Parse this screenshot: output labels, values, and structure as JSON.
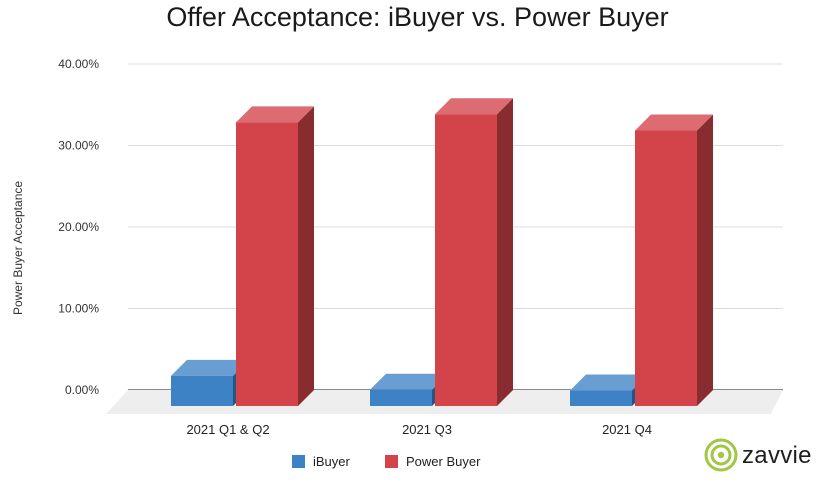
{
  "chart_data": {
    "type": "bar",
    "title": "Offer Acceptance: iBuyer vs. Power Buyer",
    "ylabel": "Power Buyer Acceptance",
    "xlabel": "",
    "categories": [
      "2021 Q1 & Q2",
      "2021 Q3",
      "2021 Q4"
    ],
    "series": [
      {
        "name": "iBuyer",
        "values": [
          3.7,
          2.0,
          1.9
        ],
        "color": "#3d82c4"
      },
      {
        "name": "Power Buyer",
        "values": [
          34.8,
          35.8,
          33.8
        ],
        "color": "#d2434a"
      }
    ],
    "yticks": [
      "0.00%",
      "10.00%",
      "20.00%",
      "30.00%",
      "40.00%"
    ],
    "ylim": [
      0,
      40
    ],
    "grid": true,
    "legend": "bottom",
    "style": "3d-column"
  },
  "brand": {
    "name": "zavvie",
    "logo_color": "#a3c644"
  }
}
